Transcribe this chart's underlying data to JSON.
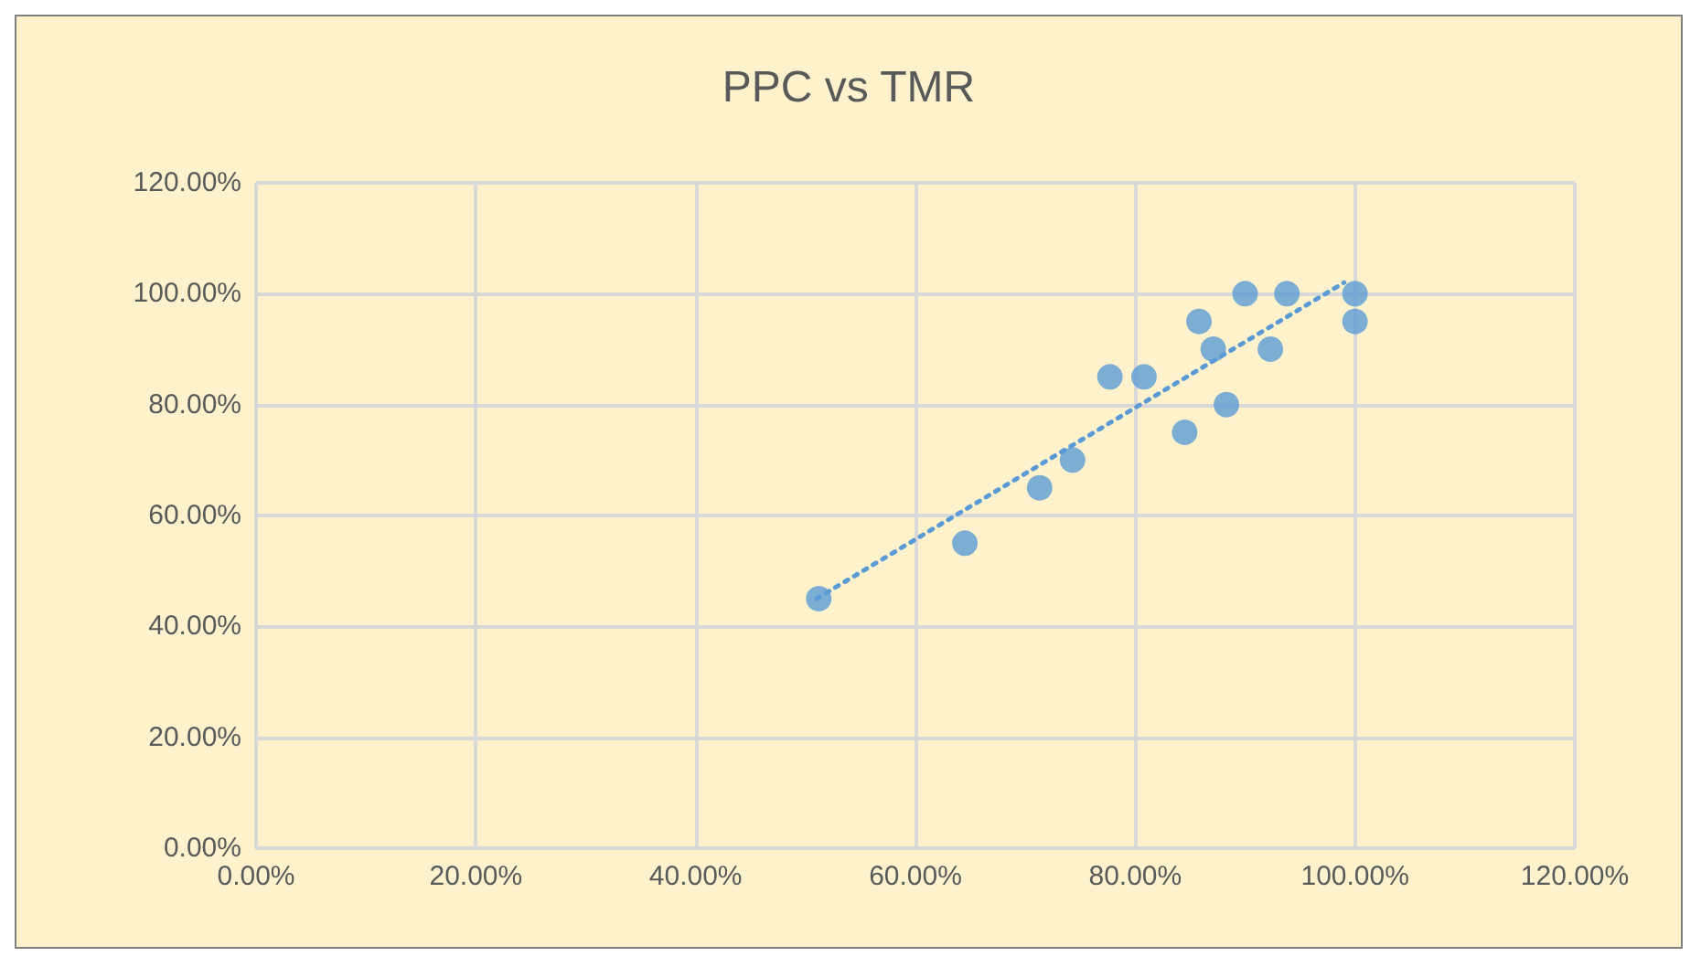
{
  "chart_data": {
    "type": "scatter",
    "title": "PPC vs TMR",
    "marker": "circle",
    "grid": true,
    "xlim": [
      0,
      120
    ],
    "ylim": [
      0,
      120
    ],
    "xticks": [
      {
        "value": 0,
        "label": "0.00%"
      },
      {
        "value": 20,
        "label": "20.00%"
      },
      {
        "value": 40,
        "label": "40.00%"
      },
      {
        "value": 60,
        "label": "60.00%"
      },
      {
        "value": 80,
        "label": "80.00%"
      },
      {
        "value": 100,
        "label": "100.00%"
      },
      {
        "value": 120,
        "label": "120.00%"
      }
    ],
    "yticks": [
      {
        "value": 0,
        "label": "0.00%"
      },
      {
        "value": 20,
        "label": "20.00%"
      },
      {
        "value": 40,
        "label": "40.00%"
      },
      {
        "value": 60,
        "label": "60.00%"
      },
      {
        "value": 80,
        "label": "80.00%"
      },
      {
        "value": 100,
        "label": "100.00%"
      },
      {
        "value": 120,
        "label": "120.00%"
      }
    ],
    "series": [
      {
        "color": "#5b9bd5",
        "x": [
          51.2,
          64.5,
          71.3,
          74.3,
          77.7,
          80.8,
          84.5,
          85.8,
          87.1,
          88.3,
          90,
          92.3,
          93.8,
          100,
          100
        ],
        "values": [
          45,
          55,
          65,
          70,
          85,
          85,
          75,
          95,
          90,
          80,
          100,
          90,
          100,
          100,
          95
        ]
      },
      {
        "type": "line",
        "color": "#5b9bd5",
        "line_style": "dotted",
        "marker": "none",
        "x": [
          51,
          99
        ],
        "values": [
          45,
          102
        ]
      }
    ]
  }
}
